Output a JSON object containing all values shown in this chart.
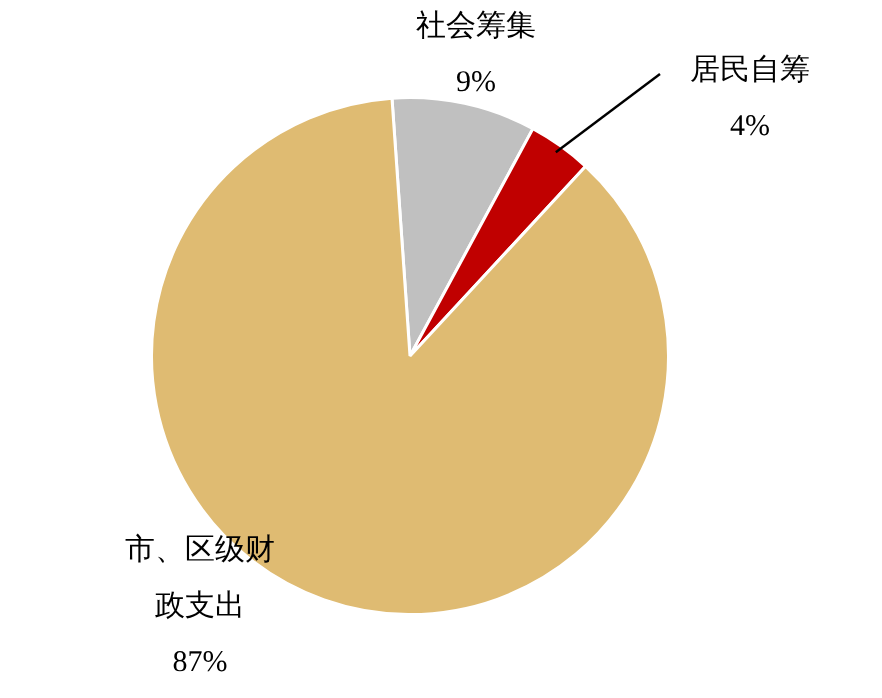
{
  "chart_data": {
    "type": "pie",
    "categories": [
      "社会筹集",
      "居民自筹",
      "市、区级财政支出"
    ],
    "values": [
      9,
      4,
      87
    ],
    "colors": [
      "#c0c0c0",
      "#c00000",
      "#dfbb72"
    ],
    "value_labels": [
      "9%",
      "4%",
      "87%"
    ],
    "legend": false
  }
}
